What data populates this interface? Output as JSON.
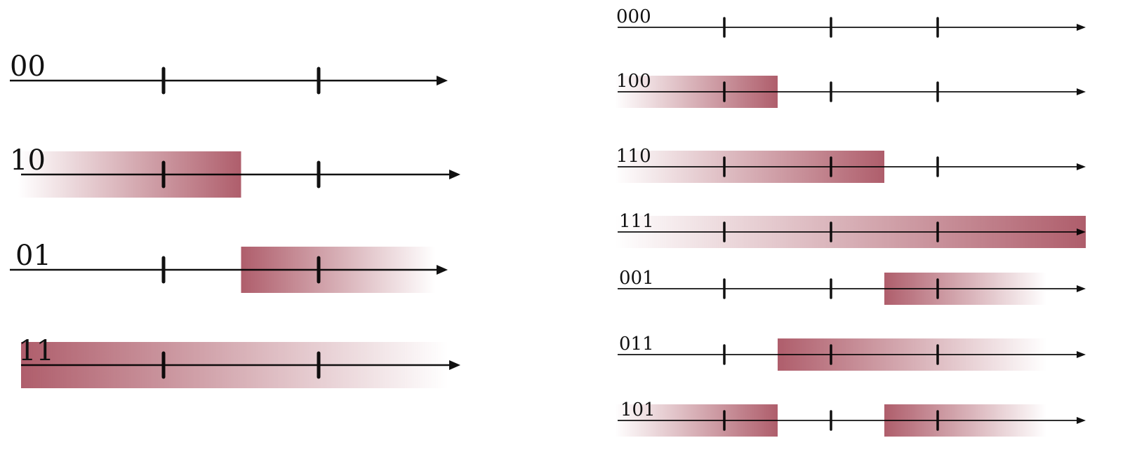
{
  "colors": {
    "band": "#a8505f",
    "axis": "#111111",
    "tick": "#111111",
    "text": "#111111"
  },
  "left_panel": {
    "num_ticks": 2,
    "rows": [
      {
        "label": "00",
        "bands": []
      },
      {
        "label": "10",
        "bands": [
          {
            "from_tick": 0,
            "to_tick": 1,
            "fade": "left"
          }
        ]
      },
      {
        "label": "01",
        "bands": [
          {
            "from_tick": 1,
            "to_tick": 2,
            "fade": "right"
          }
        ]
      },
      {
        "label": "11",
        "bands": [
          {
            "from_tick": 0,
            "to_tick": 2,
            "fade": "right"
          }
        ]
      }
    ]
  },
  "right_panel": {
    "num_ticks": 3,
    "rows": [
      {
        "label": "000",
        "bands": []
      },
      {
        "label": "100",
        "bands": [
          {
            "from_tick": 0,
            "to_tick": 1,
            "fade": "left"
          }
        ]
      },
      {
        "label": "110",
        "bands": [
          {
            "from_tick": 0,
            "to_tick": 2,
            "fade": "left"
          }
        ]
      },
      {
        "label": "111",
        "bands": [
          {
            "from_tick": 0,
            "to_tick": 3,
            "fade": "left"
          }
        ]
      },
      {
        "label": "001",
        "bands": [
          {
            "from_tick": 2,
            "to_tick": 3,
            "fade": "right"
          }
        ]
      },
      {
        "label": "011",
        "bands": [
          {
            "from_tick": 1,
            "to_tick": 3,
            "fade": "right"
          }
        ]
      },
      {
        "label": "101",
        "bands": [
          {
            "from_tick": 0,
            "to_tick": 1,
            "fade": "left"
          },
          {
            "from_tick": 2,
            "to_tick": 3,
            "fade": "right"
          }
        ]
      }
    ]
  }
}
